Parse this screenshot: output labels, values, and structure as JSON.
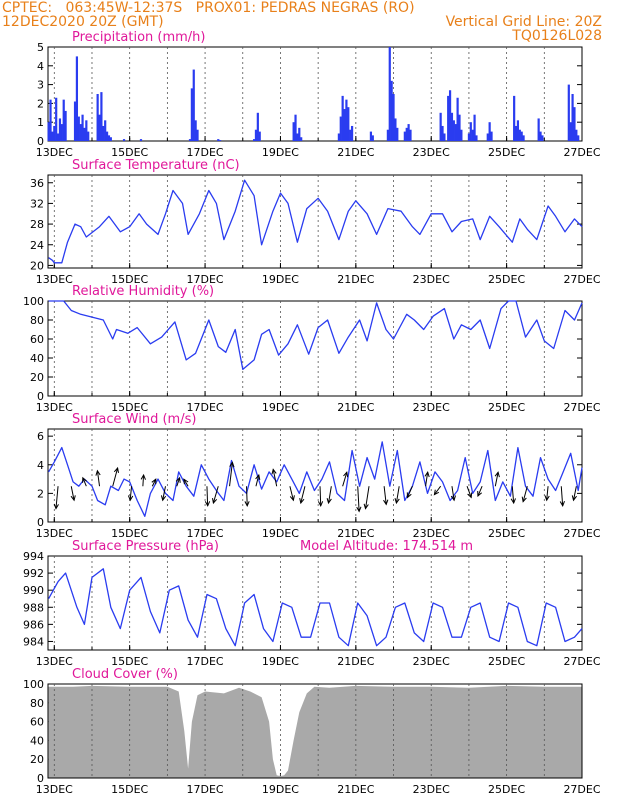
{
  "header": {
    "line1": "CPTEC:   063:45W-12:37S   PROX01: PEDRAS NEGRAS (RO)",
    "line2_left": "12DEC2020 20Z (GMT)",
    "line2_right": "Vertical Grid Line: 20Z",
    "line3_right": "TQ0126L028"
  },
  "colors": {
    "header": "#e8801a",
    "title": "#e0189a",
    "series": "#2a3cf0",
    "cloud": "#a9a9a9"
  },
  "x_axis": {
    "start": 12.833,
    "end": 27.0,
    "tick_labels": [
      "13DEC",
      "15DEC",
      "17DEC",
      "19DEC",
      "21DEC",
      "23DEC",
      "25DEC",
      "27DEC"
    ]
  },
  "chart_data": [
    {
      "id": "precip",
      "type": "bar",
      "title": "Precipitation (mm/h)",
      "ylim": [
        0,
        5
      ],
      "yticks": [
        "0",
        "1",
        "2",
        "3",
        "4",
        "5"
      ],
      "x": [
        12.85,
        12.9,
        12.95,
        13.0,
        13.05,
        13.1,
        13.15,
        13.2,
        13.25,
        13.3,
        13.55,
        13.6,
        13.65,
        13.7,
        13.75,
        13.8,
        13.85,
        13.9,
        14.15,
        14.2,
        14.25,
        14.3,
        14.35,
        14.4,
        14.45,
        14.5,
        14.85,
        15.3,
        16.6,
        16.65,
        16.7,
        16.75,
        16.8,
        17.35,
        17.4,
        18.3,
        18.35,
        18.4,
        18.45,
        19.35,
        19.4,
        19.45,
        19.5,
        19.55,
        20.55,
        20.6,
        20.65,
        20.7,
        20.75,
        20.8,
        20.85,
        20.9,
        21.4,
        21.45,
        21.85,
        21.9,
        21.95,
        22.0,
        22.05,
        22.1,
        22.3,
        22.35,
        22.4,
        22.45,
        23.25,
        23.3,
        23.35,
        23.45,
        23.5,
        23.55,
        23.6,
        23.65,
        23.7,
        23.75,
        23.8,
        24.0,
        24.05,
        24.1,
        24.15,
        24.2,
        24.5,
        24.55,
        24.6,
        25.2,
        25.25,
        25.3,
        25.35,
        25.4,
        25.45,
        25.85,
        25.9,
        25.95,
        26.65,
        26.7,
        26.75,
        26.8,
        26.85,
        26.9
      ],
      "values": [
        1.0,
        2.2,
        0.5,
        0.8,
        2.3,
        0.4,
        1.2,
        0.9,
        2.2,
        1.6,
        2.1,
        4.5,
        1.3,
        0.9,
        1.4,
        0.7,
        1.1,
        0.5,
        2.5,
        1.4,
        2.6,
        0.8,
        1.1,
        0.5,
        0.3,
        0.2,
        0.1,
        0.1,
        0.1,
        2.8,
        3.8,
        1.1,
        0.6,
        0.1,
        0.05,
        0.1,
        0.6,
        1.5,
        0.5,
        1.0,
        1.4,
        0.4,
        0.7,
        0.2,
        0.4,
        1.3,
        2.4,
        1.7,
        2.2,
        1.8,
        0.6,
        0.8,
        0.5,
        0.3,
        0.6,
        5.0,
        3.2,
        2.5,
        1.2,
        0.7,
        0.5,
        0.7,
        0.9,
        0.6,
        1.5,
        0.8,
        0.4,
        2.4,
        2.7,
        1.5,
        1.1,
        0.9,
        2.3,
        1.4,
        0.6,
        0.4,
        1.0,
        0.6,
        1.4,
        0.3,
        0.4,
        1.0,
        0.5,
        2.4,
        0.8,
        1.1,
        0.6,
        0.5,
        0.3,
        1.2,
        0.5,
        0.3,
        3.0,
        1.0,
        2.5,
        1.8,
        0.6,
        0.3
      ]
    },
    {
      "id": "temp",
      "type": "line",
      "title": "Surface Temperature (nC)",
      "ylim": [
        19.5,
        37.5
      ],
      "yticks": [
        "20",
        "24",
        "28",
        "32",
        "36"
      ],
      "ytick_values": [
        20,
        24,
        28,
        32,
        36
      ],
      "x": [
        12.85,
        12.95,
        13.0,
        13.2,
        13.35,
        13.55,
        13.7,
        13.85,
        14.2,
        14.45,
        14.75,
        15.0,
        15.25,
        15.45,
        15.75,
        15.95,
        16.15,
        16.4,
        16.55,
        16.85,
        17.1,
        17.3,
        17.5,
        17.8,
        18.05,
        18.3,
        18.5,
        18.8,
        19.0,
        19.2,
        19.45,
        19.7,
        20.0,
        20.25,
        20.55,
        20.8,
        21.0,
        21.3,
        21.55,
        21.85,
        22.2,
        22.5,
        22.7,
        23.0,
        23.3,
        23.55,
        23.8,
        24.1,
        24.3,
        24.55,
        24.8,
        25.15,
        25.35,
        25.55,
        25.8,
        26.1,
        26.3,
        26.55,
        26.8,
        27.0
      ],
      "values": [
        21.5,
        21.0,
        20.5,
        20.5,
        24.5,
        28.0,
        27.5,
        25.5,
        27.5,
        29.5,
        26.5,
        27.5,
        30.0,
        28.0,
        26.0,
        30.0,
        34.5,
        32.0,
        26.0,
        30.0,
        34.5,
        32.0,
        25.0,
        30.5,
        36.5,
        33.5,
        24.0,
        30.5,
        34.0,
        32.0,
        24.5,
        31.0,
        33.0,
        30.5,
        25.0,
        30.5,
        32.5,
        30.0,
        26.0,
        31.0,
        30.5,
        27.5,
        26.0,
        30.0,
        30.0,
        26.5,
        28.5,
        29.0,
        25.0,
        29.5,
        27.5,
        24.5,
        29.0,
        27.0,
        25.0,
        31.5,
        29.5,
        26.5,
        29.0,
        27.5
      ]
    },
    {
      "id": "rh",
      "type": "line",
      "title": "Relative Humidity (%)",
      "ylim": [
        0,
        100
      ],
      "yticks": [
        "0",
        "20",
        "40",
        "60",
        "80",
        "100"
      ],
      "ytick_values": [
        0,
        20,
        40,
        60,
        80,
        100
      ],
      "x": [
        12.85,
        13.25,
        13.45,
        13.7,
        14.3,
        14.55,
        14.65,
        14.95,
        15.2,
        15.55,
        15.85,
        16.2,
        16.5,
        16.75,
        17.1,
        17.35,
        17.55,
        17.8,
        18.0,
        18.3,
        18.5,
        18.7,
        18.95,
        19.2,
        19.45,
        19.75,
        20.0,
        20.25,
        20.55,
        20.8,
        21.1,
        21.3,
        21.55,
        21.8,
        22.0,
        22.35,
        22.55,
        22.8,
        23.05,
        23.35,
        23.6,
        23.8,
        24.05,
        24.3,
        24.55,
        24.85,
        25.05,
        25.25,
        25.5,
        25.8,
        26.0,
        26.25,
        26.55,
        26.8,
        27.0
      ],
      "values": [
        100,
        100,
        90,
        86,
        80,
        60,
        70,
        66,
        72,
        55,
        62,
        78,
        38,
        45,
        80,
        52,
        46,
        70,
        28,
        38,
        65,
        70,
        43,
        55,
        75,
        44,
        72,
        80,
        45,
        62,
        80,
        58,
        98,
        70,
        60,
        86,
        80,
        70,
        84,
        92,
        60,
        75,
        70,
        80,
        50,
        92,
        100,
        100,
        62,
        80,
        58,
        50,
        90,
        80,
        98
      ]
    },
    {
      "id": "wind",
      "type": "line",
      "title": "Surface Wind (m/s)",
      "ylim": [
        0,
        6.5
      ],
      "yticks": [
        "0",
        "2",
        "4",
        "6"
      ],
      "ytick_values": [
        0,
        2,
        4,
        6
      ],
      "x": [
        12.85,
        13.0,
        13.2,
        13.35,
        13.5,
        13.65,
        13.8,
        14.0,
        14.15,
        14.35,
        14.5,
        14.7,
        14.85,
        15.0,
        15.2,
        15.4,
        15.55,
        15.75,
        15.95,
        16.15,
        16.3,
        16.5,
        16.7,
        16.9,
        17.1,
        17.3,
        17.5,
        17.7,
        17.9,
        18.1,
        18.3,
        18.5,
        18.7,
        18.9,
        19.1,
        19.3,
        19.5,
        19.7,
        19.9,
        20.1,
        20.3,
        20.5,
        20.7,
        20.9,
        21.1,
        21.3,
        21.5,
        21.7,
        21.9,
        22.1,
        22.3,
        22.5,
        22.7,
        22.9,
        23.1,
        23.3,
        23.5,
        23.7,
        23.9,
        24.1,
        24.3,
        24.5,
        24.7,
        24.9,
        25.1,
        25.3,
        25.5,
        25.7,
        25.9,
        26.1,
        26.3,
        26.5,
        26.7,
        26.9,
        27.0
      ],
      "values": [
        3.5,
        4.2,
        5.2,
        4.0,
        2.8,
        2.5,
        3.0,
        2.5,
        1.5,
        1.2,
        2.5,
        2.2,
        3.0,
        2.8,
        1.5,
        0.4,
        2.0,
        3.0,
        2.0,
        1.5,
        3.5,
        2.5,
        1.8,
        4.0,
        3.0,
        2.2,
        1.5,
        4.3,
        2.5,
        2.0,
        4.0,
        2.3,
        3.5,
        2.8,
        4.0,
        3.0,
        2.0,
        3.5,
        2.2,
        3.0,
        4.2,
        2.0,
        1.5,
        5.0,
        2.5,
        4.5,
        3.0,
        5.6,
        2.5,
        5.0,
        1.5,
        2.5,
        4.2,
        2.0,
        3.5,
        2.8,
        1.5,
        2.2,
        4.5,
        2.0,
        2.8,
        5.0,
        1.5,
        2.8,
        1.8,
        5.2,
        2.5,
        1.8,
        4.5,
        3.0,
        2.2,
        3.5,
        4.8,
        2.2,
        3.8
      ]
    },
    {
      "id": "wind_vectors",
      "type": "vector",
      "title": "",
      "ylim": [
        0,
        6.5
      ],
      "x": [
        13.1,
        13.45,
        13.85,
        14.2,
        14.55,
        15.05,
        15.35,
        15.6,
        15.95,
        16.25,
        16.55,
        17.05,
        17.35,
        17.65,
        18.1,
        18.35,
        18.9,
        19.25,
        19.65,
        20.05,
        20.35,
        20.65,
        21.05,
        21.35,
        21.75,
        22.15,
        22.5,
        22.85,
        23.25,
        23.55,
        23.95,
        24.35,
        24.7,
        25.15,
        25.55,
        26.1,
        26.45,
        26.85
      ],
      "y": [
        2.5,
        2.5,
        2.5,
        2.5,
        2.5,
        2.5,
        2.5,
        2.5,
        2.5,
        2.5,
        2.5,
        2.5,
        2.5,
        2.5,
        2.5,
        2.5,
        2.5,
        2.5,
        2.5,
        2.5,
        2.5,
        2.5,
        2.5,
        2.5,
        2.5,
        2.5,
        2.5,
        2.5,
        2.5,
        2.5,
        2.5,
        2.5,
        2.5,
        2.5,
        2.5,
        2.5,
        2.5,
        2.5
      ],
      "u": [
        -0.15,
        0.2,
        -0.25,
        -0.15,
        0.35,
        -0.1,
        0.05,
        0.25,
        -0.2,
        0.2,
        -0.3,
        0.05,
        -0.35,
        0.2,
        0.05,
        0.2,
        -0.25,
        0.25,
        -0.3,
        0.05,
        -0.2,
        0.3,
        0.1,
        -0.25,
        0.15,
        -0.2,
        -0.35,
        0.15,
        -0.45,
        0.15,
        0.3,
        -0.3,
        0.2,
        0.1,
        -0.3,
        -0.1,
        0.1,
        -0.2
      ],
      "v": [
        -1.6,
        -1.0,
        0.6,
        1.1,
        1.3,
        -1.0,
        0.8,
        0.5,
        -1.0,
        0.6,
        0.5,
        -1.4,
        -1.2,
        1.7,
        -1.4,
        0.8,
        1.2,
        -1.0,
        -1.2,
        -1.4,
        -1.2,
        1.0,
        -1.8,
        -1.6,
        -1.3,
        -1.2,
        -0.8,
        1.0,
        -0.6,
        -1.0,
        -0.8,
        -0.7,
        1.0,
        -1.2,
        -1.1,
        -1.0,
        -1.4,
        -1.0
      ]
    },
    {
      "id": "press",
      "type": "line",
      "title": "Surface Pressure (hPa)",
      "subtitle": "Model Altitude: 174.514 m",
      "ylim": [
        983.0,
        994.0
      ],
      "yticks": [
        "984",
        "986",
        "988",
        "990",
        "992",
        "994"
      ],
      "ytick_values": [
        984,
        986,
        988,
        990,
        992,
        994
      ],
      "x": [
        12.85,
        13.1,
        13.3,
        13.6,
        13.8,
        14.0,
        14.3,
        14.5,
        14.75,
        15.0,
        15.3,
        15.55,
        15.8,
        16.05,
        16.3,
        16.55,
        16.8,
        17.05,
        17.3,
        17.55,
        17.8,
        18.05,
        18.3,
        18.55,
        18.8,
        19.05,
        19.3,
        19.55,
        19.8,
        20.05,
        20.3,
        20.55,
        20.8,
        21.05,
        21.3,
        21.55,
        21.8,
        22.05,
        22.3,
        22.55,
        22.8,
        23.05,
        23.3,
        23.55,
        23.8,
        24.05,
        24.3,
        24.55,
        24.8,
        25.05,
        25.3,
        25.55,
        25.8,
        26.05,
        26.3,
        26.55,
        26.8,
        27.0
      ],
      "values": [
        989.0,
        991.0,
        992.0,
        988.0,
        986.0,
        991.5,
        992.5,
        988.0,
        985.5,
        990.0,
        991.5,
        987.5,
        985.0,
        990.0,
        990.5,
        986.5,
        984.5,
        989.5,
        989.0,
        985.5,
        983.5,
        988.5,
        989.5,
        985.5,
        984.0,
        988.5,
        988.0,
        984.5,
        984.5,
        988.5,
        988.5,
        984.5,
        983.5,
        988.5,
        987.0,
        983.5,
        984.5,
        988.0,
        988.5,
        985.0,
        984.0,
        988.5,
        988.0,
        984.5,
        984.5,
        988.0,
        988.5,
        984.5,
        984.0,
        988.5,
        988.0,
        984.0,
        983.5,
        988.5,
        988.0,
        984.0,
        984.5,
        985.5
      ]
    },
    {
      "id": "cloud",
      "type": "area",
      "title": "Cloud Cover (%)",
      "ylim": [
        0,
        100
      ],
      "yticks": [
        "0",
        "20",
        "40",
        "60",
        "80",
        "100"
      ],
      "ytick_values": [
        0,
        20,
        40,
        60,
        80,
        100
      ],
      "x": [
        12.85,
        13.5,
        14.0,
        15.0,
        16.0,
        16.3,
        16.45,
        16.55,
        16.65,
        16.8,
        17.0,
        17.5,
        17.9,
        18.2,
        18.5,
        18.7,
        18.8,
        18.9,
        19.0,
        19.1,
        19.2,
        19.35,
        19.5,
        19.7,
        19.9,
        20.3,
        21.0,
        22.0,
        23.0,
        24.0,
        25.0,
        26.0,
        27.0
      ],
      "values": [
        97,
        97,
        98,
        97,
        97,
        92,
        50,
        10,
        60,
        88,
        92,
        90,
        96,
        92,
        86,
        60,
        20,
        3,
        2,
        3,
        8,
        40,
        70,
        90,
        97,
        96,
        98,
        97,
        97,
        96,
        98,
        97,
        97
      ]
    }
  ]
}
